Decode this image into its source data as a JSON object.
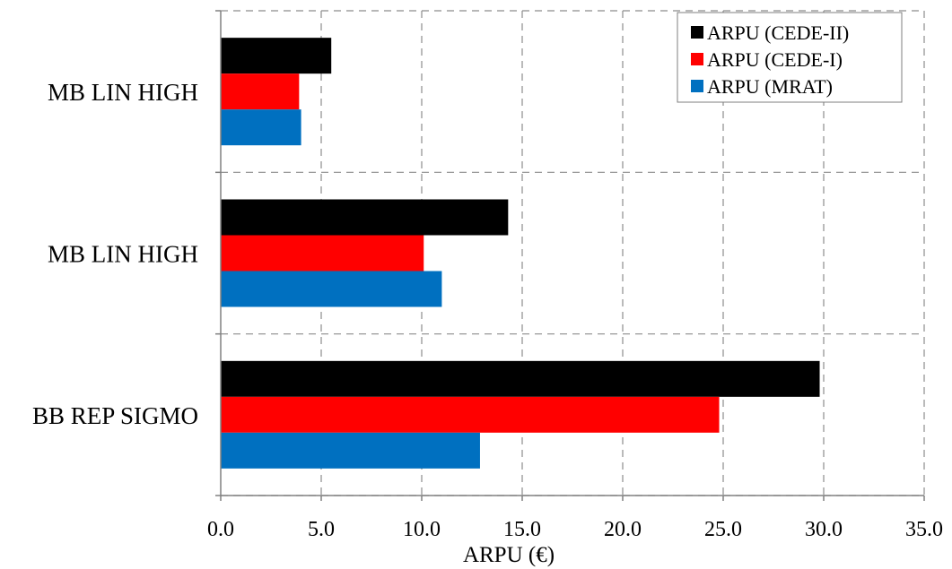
{
  "chart_data": {
    "type": "bar",
    "orientation": "horizontal",
    "categories": [
      "MB LIN HIGH",
      "MB LIN HIGH",
      "BB REP SIGMO"
    ],
    "series": [
      {
        "name": "ARPU (CEDE-II)",
        "color": "#000000",
        "values": [
          5.5,
          14.3,
          29.8
        ]
      },
      {
        "name": "ARPU (CEDE-I)",
        "color": "#ff0000",
        "values": [
          3.9,
          10.1,
          24.8
        ]
      },
      {
        "name": "ARPU (MRAT)",
        "color": "#0070c0",
        "values": [
          4.0,
          11.0,
          12.9
        ]
      }
    ],
    "xlabel": "ARPU (€)",
    "ylabel": "",
    "xlim": [
      0,
      35
    ],
    "x_ticks": [
      "0.0",
      "5.0",
      "10.0",
      "15.0",
      "20.0",
      "25.0",
      "30.0",
      "35.0"
    ],
    "grid": true,
    "legend_position": "top-right"
  }
}
